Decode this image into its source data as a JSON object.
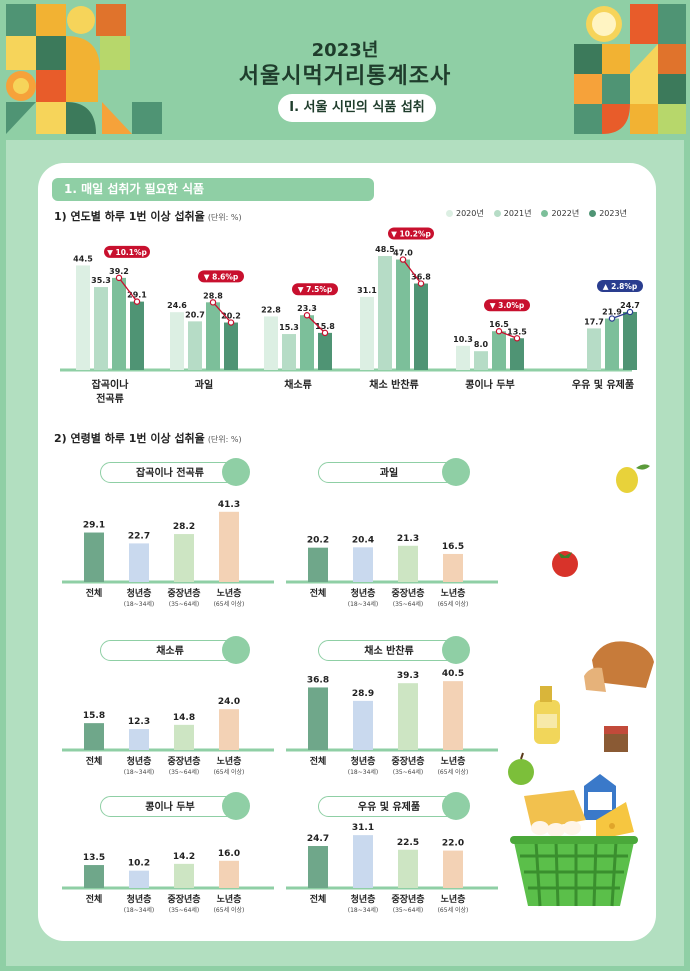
{
  "header": {
    "year": "2023년",
    "title": "서울시먹거리통계조사",
    "subtitle": "Ⅰ. 서울 시민의 식품 섭취"
  },
  "section": {
    "title": "1. 매일 섭취가 필요한 식품",
    "heading1": "1) 연도별 하루 1번 이상 섭취율",
    "heading2": "2) 연령별 하루 1번 이상 섭취율",
    "unit": "(단위: %)"
  },
  "colors": {
    "y2020": "#dcefe3",
    "y2021": "#b6dcc6",
    "y2022": "#7cbf9a",
    "y2023": "#4f9474",
    "change_down": "#c8102e",
    "change_up": "#2a3d8f",
    "all": "#6fa78a",
    "youth": "#c9d9ee",
    "middle": "#cde5c3",
    "senior": "#f3d2b5",
    "baseline": "#8fcfa5"
  },
  "chart_data": [
    {
      "type": "bar",
      "title": "1) 연도별 하루 1번 이상 섭취율",
      "unit": "(단위: %)",
      "categories": [
        "잡곡이나\n전곡류",
        "과일",
        "채소류",
        "채소 반찬류",
        "콩이나 두부",
        "우유 및 유제품"
      ],
      "series": [
        {
          "name": "2020년",
          "values": [
            44.5,
            24.6,
            22.8,
            31.1,
            10.3,
            null
          ]
        },
        {
          "name": "2021년",
          "values": [
            35.3,
            20.7,
            15.3,
            48.5,
            8.0,
            17.7
          ]
        },
        {
          "name": "2022년",
          "values": [
            39.2,
            28.8,
            23.3,
            47.0,
            16.5,
            21.9
          ]
        },
        {
          "name": "2023년",
          "values": [
            29.1,
            20.2,
            15.8,
            36.8,
            13.5,
            24.7
          ]
        }
      ],
      "change_labels": [
        "▼ 10.1%p",
        "▼ 8.6%p",
        "▼ 7.5%p",
        "▼ 10.2%p",
        "▼ 3.0%p",
        "▲ 2.8%p"
      ],
      "change_direction": [
        "down",
        "down",
        "down",
        "down",
        "down",
        "up"
      ],
      "legend_position": "top-right"
    },
    {
      "type": "bar",
      "title": "2) 연령별 하루 1번 이상 섭취율",
      "unit": "(단위: %)",
      "groups": [
        "전체",
        "청년층",
        "중장년층",
        "노년층"
      ],
      "group_notes": [
        "",
        "(18~34세)",
        "(35~64세)",
        "(65세 이상)"
      ],
      "panels": [
        {
          "title": "잡곡이나 전곡류",
          "icon": "wheat-icon",
          "values": [
            29.1,
            22.7,
            28.2,
            41.3
          ]
        },
        {
          "title": "과일",
          "icon": "apple-icon",
          "values": [
            20.2,
            20.4,
            21.3,
            16.5
          ]
        },
        {
          "title": "채소류",
          "icon": "pepper-icon",
          "values": [
            15.8,
            12.3,
            14.8,
            24.0
          ]
        },
        {
          "title": "채소 반찬류",
          "icon": "salad-bowl-icon",
          "values": [
            36.8,
            28.9,
            39.3,
            40.5
          ]
        },
        {
          "title": "콩이나 두부",
          "icon": "bean-tofu-icon",
          "values": [
            13.5,
            10.2,
            14.2,
            16.0
          ]
        },
        {
          "title": "우유 및 유제품",
          "icon": "milk-bottle-icon",
          "values": [
            24.7,
            31.1,
            22.5,
            22.0
          ]
        }
      ]
    }
  ]
}
